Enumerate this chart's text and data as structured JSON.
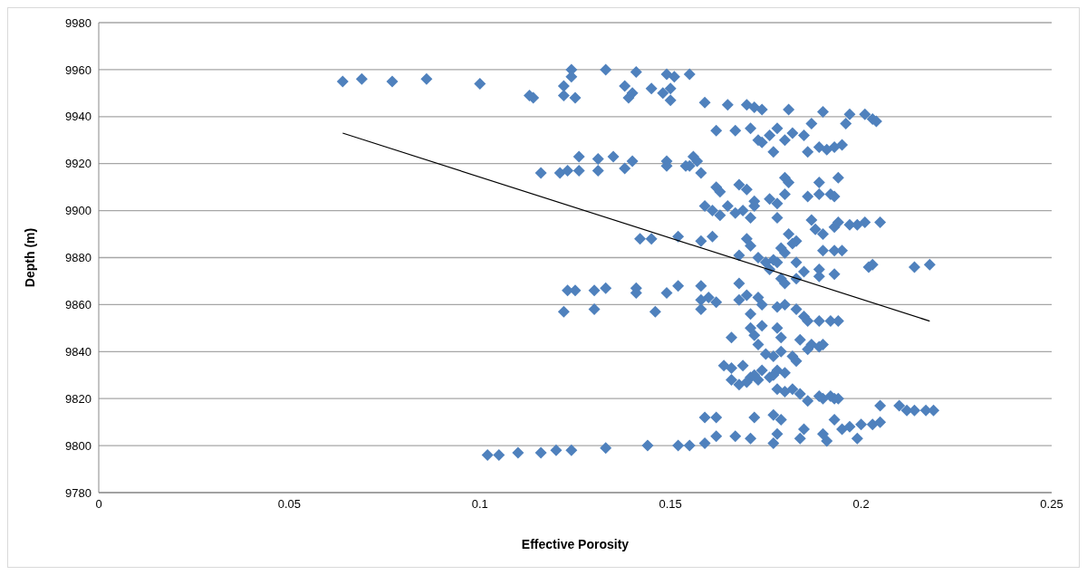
{
  "chart_data": {
    "type": "scatter",
    "xlabel": "Effective Porosity",
    "ylabel": "Depth (m)",
    "xlim": [
      0,
      0.25
    ],
    "xticks": [
      0,
      0.05,
      0.1,
      0.15,
      0.2,
      0.25
    ],
    "ylim": [
      9780,
      9980
    ],
    "yticks": [
      9780,
      9800,
      9820,
      9840,
      9860,
      9880,
      9900,
      9920,
      9940,
      9960,
      9980
    ],
    "grid": "y",
    "marker": "diamond",
    "series": [
      {
        "color": "#4f81bd",
        "x": [
          0.064,
          0.069,
          0.077,
          0.086,
          0.1,
          0.114,
          0.113,
          0.122,
          0.124,
          0.124,
          0.122,
          0.125,
          0.133,
          0.138,
          0.139,
          0.14,
          0.141,
          0.145,
          0.149,
          0.148,
          0.15,
          0.151,
          0.15,
          0.155,
          0.159,
          0.165,
          0.17,
          0.172,
          0.174,
          0.181,
          0.19,
          0.197,
          0.201,
          0.203,
          0.204,
          0.162,
          0.167,
          0.171,
          0.173,
          0.176,
          0.178,
          0.18,
          0.182,
          0.185,
          0.187,
          0.186,
          0.177,
          0.189,
          0.191,
          0.193,
          0.195,
          0.196,
          0.174,
          0.116,
          0.121,
          0.123,
          0.126,
          0.126,
          0.131,
          0.131,
          0.135,
          0.138,
          0.14,
          0.149,
          0.149,
          0.156,
          0.155,
          0.157,
          0.158,
          0.154,
          0.162,
          0.163,
          0.168,
          0.17,
          0.172,
          0.176,
          0.18,
          0.181,
          0.18,
          0.178,
          0.186,
          0.189,
          0.189,
          0.192,
          0.194,
          0.193,
          0.159,
          0.161,
          0.163,
          0.165,
          0.167,
          0.169,
          0.171,
          0.172,
          0.142,
          0.145,
          0.152,
          0.158,
          0.161,
          0.178,
          0.181,
          0.183,
          0.187,
          0.188,
          0.19,
          0.193,
          0.194,
          0.197,
          0.199,
          0.201,
          0.205,
          0.17,
          0.171,
          0.179,
          0.18,
          0.182,
          0.19,
          0.193,
          0.195,
          0.168,
          0.173,
          0.175,
          0.177,
          0.176,
          0.178,
          0.183,
          0.185,
          0.189,
          0.193,
          0.202,
          0.203,
          0.214,
          0.218,
          0.179,
          0.183,
          0.18,
          0.189,
          0.122,
          0.123,
          0.125,
          0.13,
          0.13,
          0.133,
          0.141,
          0.141,
          0.146,
          0.149,
          0.152,
          0.158,
          0.158,
          0.16,
          0.162,
          0.158,
          0.168,
          0.168,
          0.17,
          0.173,
          0.174,
          0.178,
          0.18,
          0.183,
          0.185,
          0.186,
          0.189,
          0.192,
          0.194,
          0.171,
          0.166,
          0.171,
          0.172,
          0.174,
          0.178,
          0.179,
          0.184,
          0.187,
          0.189,
          0.19,
          0.186,
          0.173,
          0.175,
          0.177,
          0.179,
          0.182,
          0.183,
          0.164,
          0.166,
          0.169,
          0.171,
          0.172,
          0.174,
          0.176,
          0.178,
          0.18,
          0.166,
          0.168,
          0.17,
          0.173,
          0.177,
          0.178,
          0.18,
          0.182,
          0.184,
          0.186,
          0.189,
          0.19,
          0.192,
          0.193,
          0.194,
          0.205,
          0.21,
          0.212,
          0.214,
          0.217,
          0.219,
          0.159,
          0.162,
          0.172,
          0.177,
          0.179,
          0.178,
          0.185,
          0.19,
          0.193,
          0.195,
          0.197,
          0.2,
          0.203,
          0.205,
          0.191,
          0.199,
          0.184,
          0.177,
          0.171,
          0.167,
          0.162,
          0.102,
          0.105,
          0.11,
          0.116,
          0.12,
          0.124,
          0.133,
          0.144,
          0.152,
          0.155,
          0.159
        ],
        "values": [
          9955,
          9956,
          9955,
          9956,
          9954,
          9948,
          9949,
          9953,
          9960,
          9957,
          9949,
          9948,
          9960,
          9953,
          9948,
          9950,
          9959,
          9952,
          9958,
          9950,
          9952,
          9957,
          9947,
          9958,
          9946,
          9945,
          9945,
          9944,
          9943,
          9943,
          9942,
          9941,
          9941,
          9939,
          9938,
          9934,
          9934,
          9935,
          9930,
          9932,
          9935,
          9930,
          9933,
          9932,
          9937,
          9925,
          9925,
          9927,
          9926,
          9927,
          9928,
          9937,
          9929,
          9916,
          9916,
          9917,
          9923,
          9917,
          9922,
          9917,
          9923,
          9918,
          9921,
          9921,
          9919,
          9923,
          9919,
          9921,
          9916,
          9919,
          9910,
          9908,
          9911,
          9909,
          9904,
          9905,
          9914,
          9912,
          9907,
          9903,
          9906,
          9912,
          9907,
          9907,
          9914,
          9906,
          9902,
          9900,
          9898,
          9902,
          9899,
          9900,
          9897,
          9902,
          9888,
          9888,
          9889,
          9887,
          9889,
          9897,
          9890,
          9887,
          9896,
          9892,
          9890,
          9893,
          9895,
          9894,
          9894,
          9895,
          9895,
          9888,
          9885,
          9884,
          9882,
          9886,
          9883,
          9883,
          9883,
          9881,
          9880,
          9878,
          9879,
          9875,
          9878,
          9878,
          9874,
          9875,
          9873,
          9876,
          9877,
          9876,
          9877,
          9871,
          9871,
          9869,
          9872,
          9857,
          9866,
          9866,
          9858,
          9866,
          9867,
          9867,
          9865,
          9857,
          9865,
          9868,
          9868,
          9862,
          9863,
          9861,
          9858,
          9869,
          9862,
          9864,
          9863,
          9860,
          9859,
          9860,
          9858,
          9855,
          9853,
          9853,
          9853,
          9853,
          9856,
          9846,
          9850,
          9847,
          9851,
          9850,
          9846,
          9845,
          9843,
          9842,
          9843,
          9841,
          9843,
          9839,
          9838,
          9840,
          9838,
          9836,
          9834,
          9833,
          9834,
          9829,
          9830,
          9832,
          9829,
          9832,
          9831,
          9828,
          9826,
          9827,
          9828,
          9830,
          9824,
          9823,
          9824,
          9822,
          9819,
          9821,
          9820,
          9821,
          9820,
          9820,
          9817,
          9817,
          9815,
          9815,
          9815,
          9815,
          9812,
          9812,
          9812,
          9813,
          9811,
          9805,
          9807,
          9805,
          9811,
          9807,
          9808,
          9809,
          9809,
          9810,
          9802,
          9803,
          9803,
          9801,
          9803,
          9804,
          9804,
          9796,
          9796,
          9797,
          9797,
          9798,
          9798,
          9799,
          9800,
          9800,
          9800,
          9801
        ]
      },
      {
        "type": "line",
        "marker": "none",
        "color": "#000000",
        "x": [
          0.064,
          0.218
        ],
        "values": [
          9933,
          9853
        ]
      }
    ]
  }
}
